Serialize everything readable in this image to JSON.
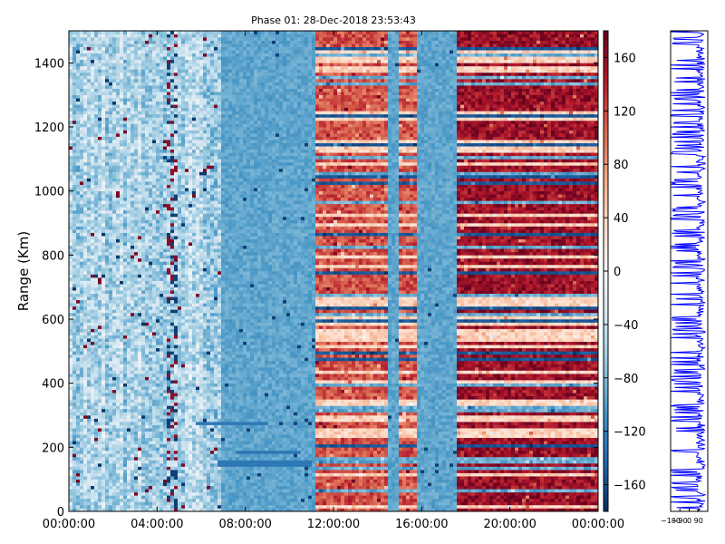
{
  "chart_data": [
    {
      "type": "heatmap",
      "title": "Phase 01: 28-Dec-2018 23:53:43",
      "xlabel": "",
      "ylabel": "Range (Km)",
      "x_tick_labels": [
        "00:00:00",
        "04:00:00",
        "08:00:00",
        "12:00:00",
        "16:00:00",
        "20:00:00",
        "00:00:00"
      ],
      "x_range_hours": [
        0,
        24
      ],
      "ylim": [
        0,
        1500
      ],
      "y_ticks": [
        0,
        200,
        400,
        600,
        800,
        1000,
        1200,
        1400
      ],
      "colorbar": {
        "range": [
          -180,
          180
        ],
        "ticks": [
          -160,
          -120,
          -80,
          -40,
          0,
          40,
          80,
          120,
          160
        ],
        "colormap": "RdBu_r",
        "colors": {
          "negative": "#053061",
          "neutral": "#f7f7f7",
          "positive": "#67001f"
        }
      },
      "segments": [
        {
          "start_hour": 0.0,
          "end_hour": 6.9,
          "pattern": "light_blue_noise",
          "mean_phase": -60
        },
        {
          "start_hour": 6.9,
          "end_hour": 11.1,
          "pattern": "uniform_blue",
          "mean_phase": -95
        },
        {
          "start_hour": 11.1,
          "end_hour": 14.5,
          "pattern": "red_banded",
          "mean_phase": 80
        },
        {
          "start_hour": 14.5,
          "end_hour": 15.0,
          "pattern": "uniform_blue",
          "mean_phase": -100
        },
        {
          "start_hour": 15.0,
          "end_hour": 15.8,
          "pattern": "red_banded",
          "mean_phase": 80
        },
        {
          "start_hour": 15.8,
          "end_hour": 17.6,
          "pattern": "uniform_blue",
          "mean_phase": -100
        },
        {
          "start_hour": 17.6,
          "end_hour": 24.0,
          "pattern": "red_banded_strong",
          "mean_phase": 120
        }
      ],
      "features": [
        {
          "type": "dark_streak",
          "start_hour": 6.8,
          "end_hour": 11.0,
          "range_km": 150
        },
        {
          "type": "dark_streak",
          "start_hour": 7.5,
          "end_hour": 10.5,
          "range_km": 185
        },
        {
          "type": "dark_streak",
          "start_hour": 5.8,
          "end_hour": 9.0,
          "range_km": 275
        }
      ]
    },
    {
      "type": "line",
      "title": "",
      "xlabel": "",
      "ylabel": "",
      "x_tick_labels": [
        "−180",
        "−90",
        "0",
        "90"
      ],
      "xlim": [
        -180,
        180
      ],
      "ylim": [
        0,
        1500
      ],
      "series_color": "#0000ff"
    }
  ]
}
